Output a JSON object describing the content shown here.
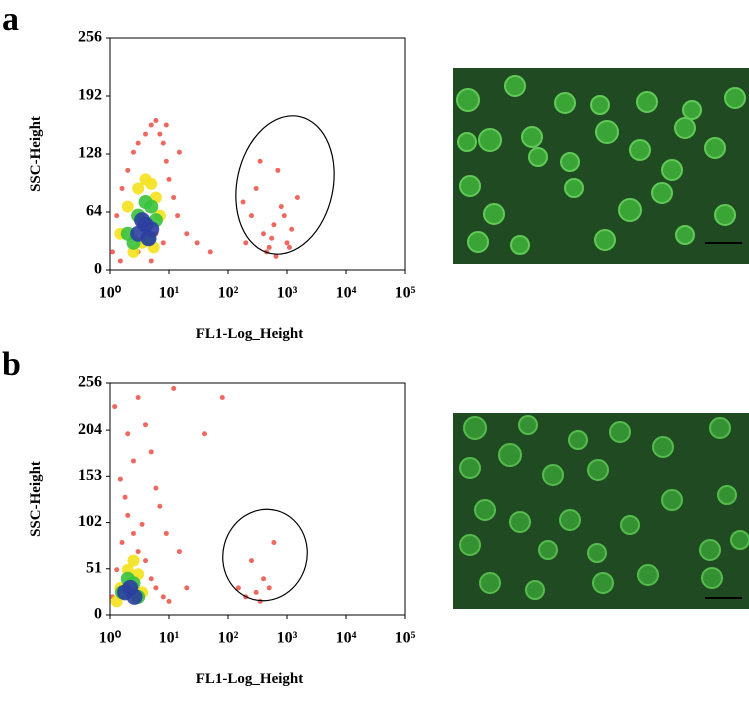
{
  "chart_data": [
    {
      "type": "scatter",
      "panel": "a",
      "x_label": "FL1-Log_Height",
      "y_label": "SSC-Height",
      "log_x": true,
      "xlim": [
        1,
        100000
      ],
      "ylim": [
        0,
        256
      ],
      "xticks": [
        {
          "value": 1,
          "label": "10⁰"
        },
        {
          "value": 10,
          "label": "10¹"
        },
        {
          "value": 100,
          "label": "10²"
        },
        {
          "value": 1000,
          "label": "10³"
        },
        {
          "value": 10000,
          "label": "10⁴"
        },
        {
          "value": 100000,
          "label": "10⁵"
        }
      ],
      "yticks": [
        0,
        64,
        128,
        192,
        256
      ],
      "series": [
        {
          "color": "#e8281c",
          "x": [
            1.1,
            1.3,
            1.6,
            2,
            2.5,
            3,
            4,
            5,
            6,
            7,
            8,
            9,
            10,
            12,
            14,
            6,
            3,
            8,
            1.5,
            20,
            30,
            50,
            15,
            5,
            9,
            200,
            250,
            300,
            400,
            500,
            600,
            700,
            800,
            1000,
            1200,
            1500,
            350,
            450,
            550,
            900,
            180,
            650,
            1100
          ],
          "values": [
            20,
            60,
            90,
            110,
            130,
            140,
            150,
            160,
            165,
            150,
            140,
            120,
            100,
            80,
            60,
            40,
            20,
            30,
            10,
            40,
            30,
            20,
            130,
            10,
            160,
            30,
            60,
            90,
            40,
            25,
            50,
            110,
            70,
            30,
            45,
            80,
            120,
            20,
            35,
            60,
            75,
            15,
            25
          ]
        },
        {
          "color": "#f4e21c",
          "x": [
            1.5,
            2,
            3,
            4,
            5,
            6,
            7,
            3.5,
            2.5,
            5.5
          ],
          "values": [
            40,
            70,
            90,
            100,
            95,
            80,
            60,
            30,
            20,
            25
          ]
        },
        {
          "color": "#39c23c",
          "x": [
            2,
            3,
            4,
            5,
            6,
            2.5,
            4.5
          ],
          "values": [
            40,
            60,
            75,
            70,
            55,
            30,
            35
          ]
        },
        {
          "color": "#2c3f9e",
          "x": [
            3,
            4,
            5,
            3.5,
            4.5
          ],
          "values": [
            40,
            50,
            45,
            55,
            35
          ]
        }
      ]
    },
    {
      "type": "scatter",
      "panel": "b",
      "x_label": "FL1-Log_Height",
      "y_label": "SSC-Height",
      "log_x": true,
      "xlim": [
        1,
        100000
      ],
      "ylim": [
        0,
        256
      ],
      "xticks": [
        {
          "value": 1,
          "label": "10⁰"
        },
        {
          "value": 10,
          "label": "10¹"
        },
        {
          "value": 100,
          "label": "10²"
        },
        {
          "value": 1000,
          "label": "10³"
        },
        {
          "value": 10000,
          "label": "10⁴"
        },
        {
          "value": 100000,
          "label": "10⁵"
        }
      ],
      "yticks": [
        0,
        51,
        102,
        153,
        204,
        256
      ],
      "series": [
        {
          "color": "#e8281c",
          "x": [
            1.1,
            1.3,
            1.6,
            2,
            2.5,
            3,
            4,
            5,
            6,
            8,
            10,
            1.5,
            2,
            3,
            5,
            7,
            9,
            12,
            15,
            1.2,
            2.5,
            4,
            6,
            20,
            40,
            80,
            1.8,
            3.5,
            150,
            200,
            250,
            300,
            400,
            500,
            350,
            600
          ],
          "values": [
            20,
            50,
            80,
            110,
            90,
            70,
            60,
            40,
            30,
            20,
            15,
            150,
            200,
            240,
            180,
            120,
            90,
            250,
            70,
            230,
            170,
            210,
            140,
            30,
            200,
            240,
            130,
            100,
            30,
            20,
            60,
            25,
            40,
            30,
            15,
            80
          ]
        },
        {
          "color": "#f4e21c",
          "x": [
            1.5,
            2,
            2.5,
            3,
            3.5,
            1.3
          ],
          "values": [
            30,
            50,
            60,
            45,
            25,
            15
          ]
        },
        {
          "color": "#39c23c",
          "x": [
            1.6,
            2,
            2.5,
            3
          ],
          "values": [
            25,
            40,
            35,
            20
          ]
        },
        {
          "color": "#2c3f9e",
          "x": [
            1.8,
            2.2,
            2.6
          ],
          "values": [
            25,
            30,
            20
          ]
        }
      ]
    }
  ]
}
